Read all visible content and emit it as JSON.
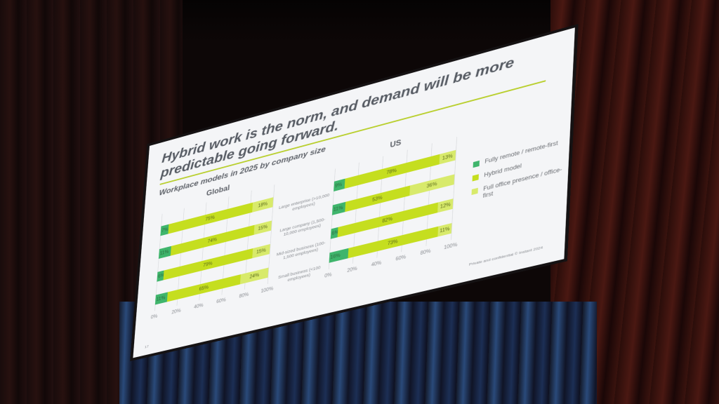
{
  "slide": {
    "title": "Hybrid work is the norm, and demand will be more predictable going forward.",
    "subtitle": "Workplace models in 2025 by company size",
    "footer": "Private and confidential © Instant 2024",
    "page_number": "17"
  },
  "colors": {
    "remote": "#3fb56c",
    "hybrid": "#c5de1f",
    "office": "#d8ea6b",
    "title_rule": "#b9cf2e"
  },
  "legend": [
    {
      "key": "remote",
      "label": "Fully remote / remote-first"
    },
    {
      "key": "hybrid",
      "label": "Hybrid model"
    },
    {
      "key": "office",
      "label": "Full office presence / office-first"
    }
  ],
  "categories": [
    "Large enterprise (>10,000 employees)",
    "Large company (1,500-10,000 employees)",
    "Mid-sized business (100-1,500 employees)",
    "Small business (<100 employees)"
  ],
  "axis_ticks": [
    "0%",
    "20%",
    "40%",
    "60%",
    "80%",
    "100%"
  ],
  "panels": {
    "global": {
      "title": "Global"
    },
    "us": {
      "title": "US"
    }
  },
  "chart_data": [
    {
      "type": "bar",
      "orientation": "horizontal",
      "stacked": true,
      "title": "Global",
      "categories": [
        "Large enterprise (>10,000 employees)",
        "Large company (1,500-10,000 employees)",
        "Mid-sized business (100-1,500 employees)",
        "Small business (<100 employees)"
      ],
      "series": [
        {
          "name": "Fully remote / remote-first",
          "values": [
            7,
            11,
            6,
            11
          ]
        },
        {
          "name": "Hybrid model",
          "values": [
            75,
            74,
            79,
            65
          ]
        },
        {
          "name": "Full office presence / office-first",
          "values": [
            18,
            15,
            15,
            24
          ]
        }
      ],
      "xlim": [
        0,
        100
      ],
      "xticks": [
        "0%",
        "20%",
        "40%",
        "60%",
        "80%",
        "100%"
      ],
      "grid": true,
      "legend_position": "right"
    },
    {
      "type": "bar",
      "orientation": "horizontal",
      "stacked": true,
      "title": "US",
      "categories": [
        "Large enterprise (>10,000 employees)",
        "Large company (1,500-10,000 employees)",
        "Mid-sized business (100-1,500 employees)",
        "Small business (<100 employees)"
      ],
      "series": [
        {
          "name": "Fully remote / remote-first",
          "values": [
            9,
            11,
            6,
            16
          ]
        },
        {
          "name": "Hybrid model",
          "values": [
            78,
            53,
            82,
            73
          ]
        },
        {
          "name": "Full office presence / office-first",
          "values": [
            13,
            36,
            12,
            11
          ]
        }
      ],
      "xlim": [
        0,
        100
      ],
      "xticks": [
        "0%",
        "20%",
        "40%",
        "60%",
        "80%",
        "100%"
      ],
      "grid": true,
      "legend_position": "right"
    }
  ]
}
